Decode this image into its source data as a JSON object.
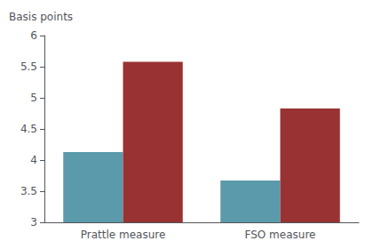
{
  "chart_data": {
    "type": "bar",
    "ylabel": "Basis points",
    "categories": [
      "Prattle measure",
      "FSO measure"
    ],
    "series": [
      {
        "color": "#5b9aaa",
        "values": [
          4.13,
          3.67
        ]
      },
      {
        "color": "#993333",
        "values": [
          5.58,
          4.83
        ]
      }
    ],
    "ylim": [
      3.0,
      6.0
    ],
    "yticks": [
      3,
      3.5,
      4,
      4.5,
      5,
      5.5,
      6
    ],
    "grid": false
  }
}
